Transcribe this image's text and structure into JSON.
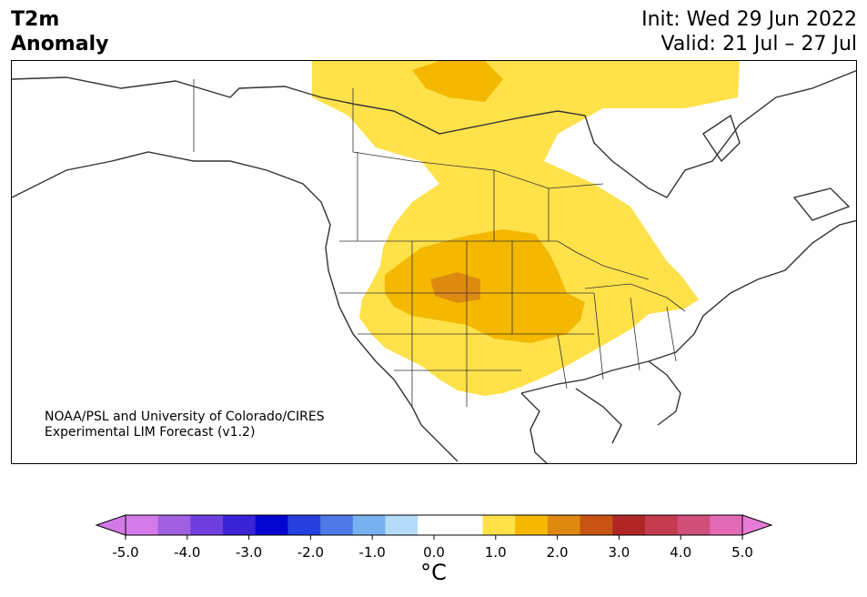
{
  "title": {
    "left_line1": "T2m",
    "left_line2": "Anomaly",
    "right_line1": "Init: Wed 29 Jun 2022",
    "right_line2": "Valid: 21 Jul – 27 Jul"
  },
  "credit": {
    "line1": "NOAA/PSL and University of Colorado/CIRES",
    "line2": "Experimental LIM Forecast (v1.2)"
  },
  "colorbar": {
    "unit_label": "°C",
    "tick_labels": [
      "-5.0",
      "-4.0",
      "-3.0",
      "-2.0",
      "-1.0",
      "0.0",
      "1.0",
      "2.0",
      "3.0",
      "4.0",
      "5.0"
    ],
    "segment_colors": [
      "#d47ae8",
      "#a05fe0",
      "#6e3fdc",
      "#3a23d4",
      "#0505d2",
      "#2540dc",
      "#4d78e6",
      "#78b1f0",
      "#b4dcf8",
      "#ffffff",
      "#ffffff",
      "#ffe14a",
      "#f4b800",
      "#de8a10",
      "#c85414",
      "#b02626",
      "#c43b50",
      "#d0507a",
      "#e36ab4"
    ],
    "under_color": "#d47ae8",
    "over_color": "#e87ad8"
  },
  "anomaly_colors": {
    "level_0_5": "#ffe14a",
    "level_1_0": "#f4b800",
    "level_1_5": "#de8a10"
  }
}
